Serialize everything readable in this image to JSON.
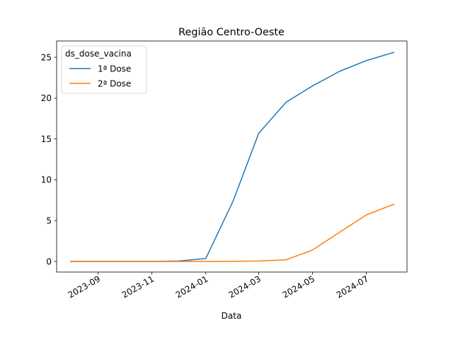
{
  "chart_data": {
    "type": "line",
    "title": "Região Centro-Oeste",
    "xlabel": "Data",
    "ylabel": "",
    "x_ticks": [
      "2023-09",
      "2023-11",
      "2024-01",
      "2024-03",
      "2024-05",
      "2024-07"
    ],
    "y_ticks": [
      "0",
      "5",
      "10",
      "15",
      "20",
      "25"
    ],
    "xlim": [
      "2023-07-16",
      "2024-08-16"
    ],
    "ylim": [
      -1.3,
      27.0
    ],
    "legend": {
      "title": "ds_dose_vacina",
      "placement": "top-left"
    },
    "x": [
      "2023-08-01",
      "2023-09-01",
      "2023-10-01",
      "2023-11-01",
      "2023-12-01",
      "2024-01-01",
      "2024-02-01",
      "2024-03-01",
      "2024-04-01",
      "2024-05-01",
      "2024-06-01",
      "2024-07-01",
      "2024-08-01"
    ],
    "series": [
      {
        "name": "1ª Dose",
        "color": "#1f77b4",
        "values": [
          0.0,
          0.0,
          0.0,
          0.0,
          0.05,
          0.35,
          7.4,
          15.7,
          19.5,
          21.5,
          23.3,
          24.6,
          25.6
        ]
      },
      {
        "name": "2ª Dose",
        "color": "#ff7f0e",
        "values": [
          0.0,
          0.0,
          0.0,
          0.0,
          0.0,
          0.0,
          0.02,
          0.05,
          0.2,
          1.4,
          3.6,
          5.7,
          7.0
        ]
      }
    ]
  }
}
